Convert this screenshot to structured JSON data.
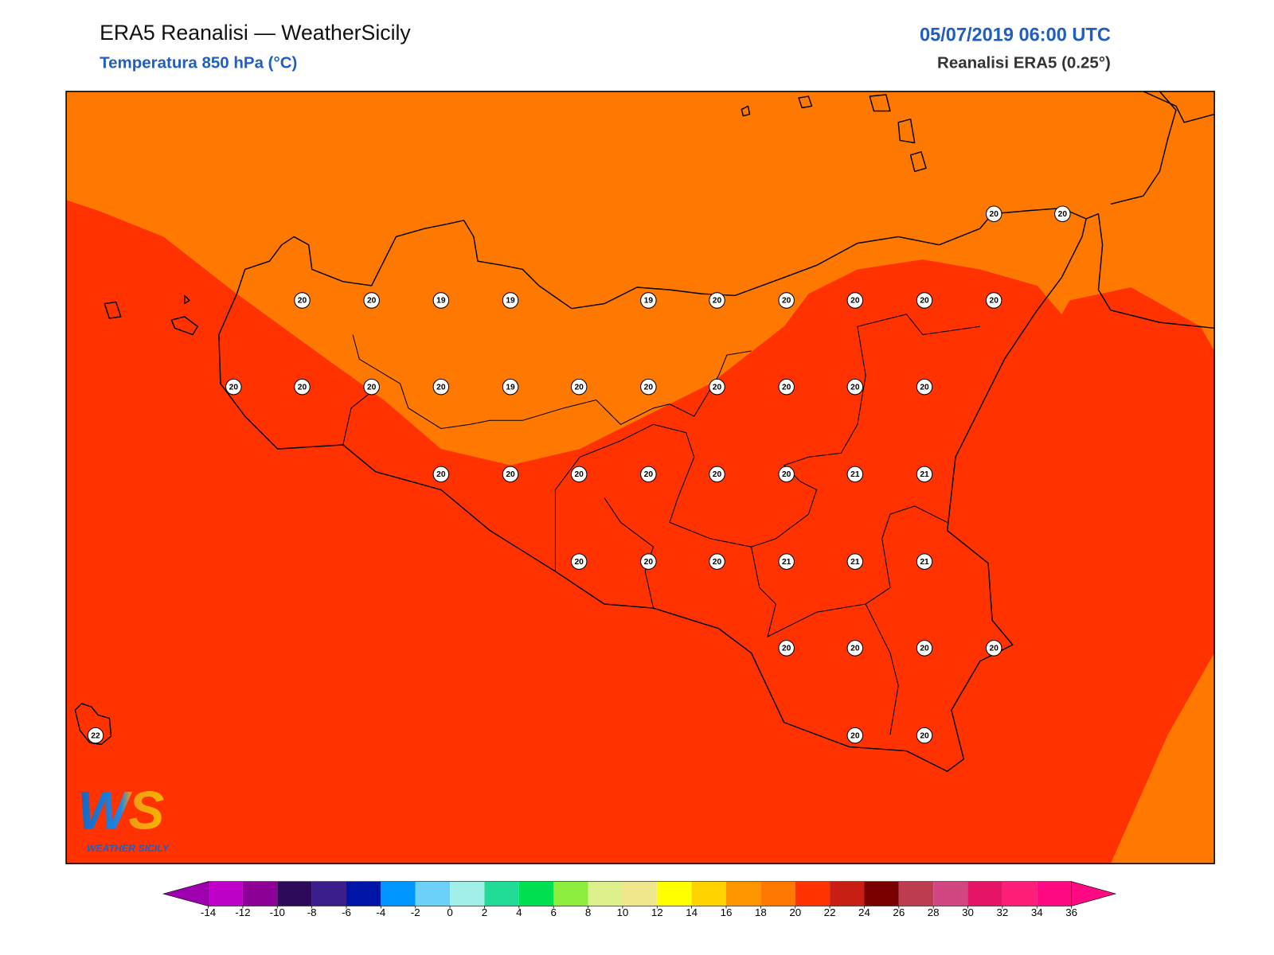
{
  "header": {
    "title": "ERA5 Reanalisi — WeatherSicily",
    "subtitle": "Temperatura 850 hPa (°C)",
    "datetime": "05/07/2019 06:00 UTC",
    "model": "Reanalisi ERA5 (0.25°)"
  },
  "points": [
    20,
    20,
    20,
    20,
    19,
    19,
    19,
    20,
    20,
    20,
    20,
    20,
    20,
    20,
    20,
    20,
    19,
    20,
    20,
    20,
    20,
    20,
    20,
    20,
    20,
    20,
    20,
    20,
    20,
    21,
    21,
    20,
    20,
    20,
    21,
    21,
    21,
    20,
    20,
    20,
    20,
    22,
    20,
    20
  ],
  "colorbar": {
    "ticks": [
      -14,
      -12,
      -10,
      -8,
      -6,
      -4,
      -2,
      0,
      2,
      4,
      6,
      8,
      10,
      12,
      14,
      16,
      18,
      20,
      22,
      24,
      26,
      28,
      30,
      32,
      34,
      36
    ],
    "colors": [
      "#9e00b0",
      "#bf00c8",
      "#8c0096",
      "#2e0a5a",
      "#3a1e8c",
      "#0014a8",
      "#0096ff",
      "#6cd0f8",
      "#a0f0e8",
      "#20dc96",
      "#00e050",
      "#8ced3c",
      "#dcf08c",
      "#f0e68c",
      "#ffff00",
      "#ffd200",
      "#ff9600",
      "#ff7800",
      "#ff3200",
      "#c81e14",
      "#780000",
      "#be3c50",
      "#d24682",
      "#e61464",
      "#ff1e78",
      "#ff0a82",
      "#ff0a82"
    ]
  },
  "logo": {
    "initials": "WS",
    "text": "WEATHER SICILY"
  }
}
